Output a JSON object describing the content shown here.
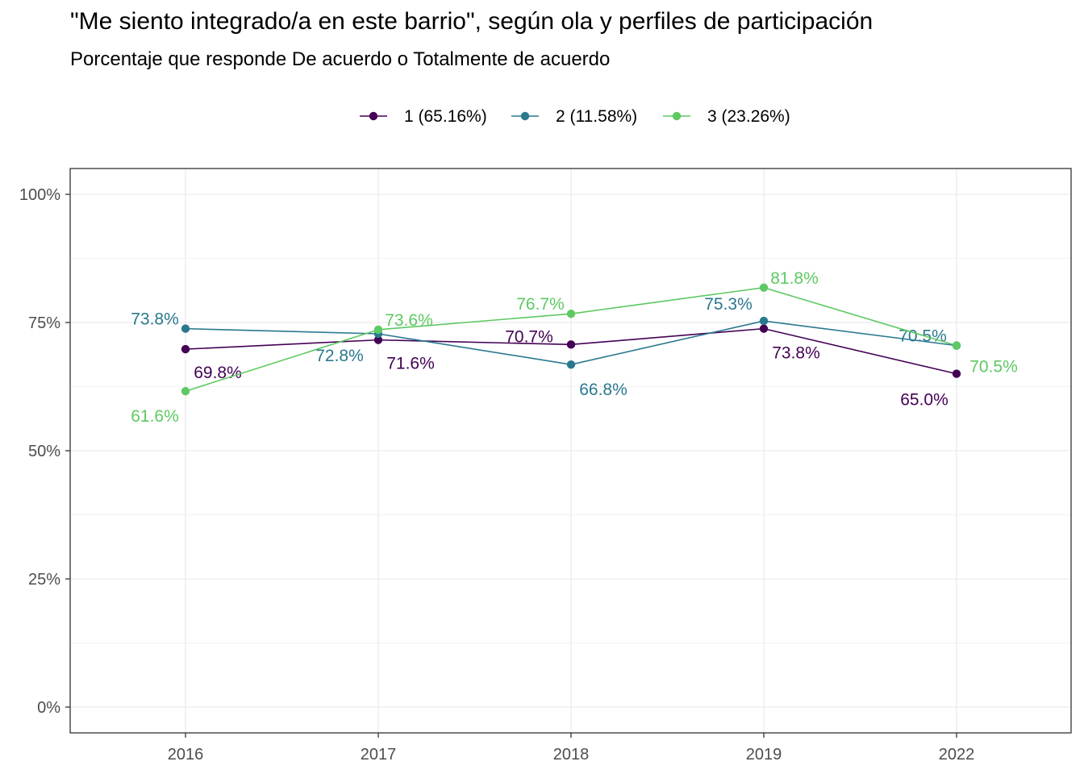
{
  "chart_data": {
    "type": "line",
    "title": "\"Me siento integrado/a en este barrio\", según ola y perfiles de participación",
    "subtitle": "Porcentaje que responde De acuerdo o Totalmente de acuerdo",
    "categories": [
      "2016",
      "2017",
      "2018",
      "2019",
      "2022"
    ],
    "y_ticks": [
      "0%",
      "25%",
      "50%",
      "75%",
      "100%"
    ],
    "ylim": [
      0,
      1
    ],
    "grid": true,
    "legend_position": "top",
    "series": [
      {
        "name": "1 (65.16%)",
        "color": "#440154",
        "values": [
          0.698,
          0.716,
          0.707,
          0.738,
          0.65
        ],
        "labels": [
          "69.8%",
          "71.6%",
          "70.7%",
          "73.8%",
          "65.0%"
        ]
      },
      {
        "name": "2 (11.58%)",
        "color": "#2A788E",
        "values": [
          0.738,
          0.728,
          0.668,
          0.753,
          0.705
        ],
        "labels": [
          "73.8%",
          "72.8%",
          "66.8%",
          "75.3%",
          "70.5%"
        ]
      },
      {
        "name": "3 (23.26%)",
        "color": "#5EC962",
        "values": [
          0.616,
          0.736,
          0.767,
          0.818,
          0.705
        ],
        "labels": [
          "61.6%",
          "73.6%",
          "76.7%",
          "81.8%",
          "70.5%"
        ]
      }
    ]
  }
}
